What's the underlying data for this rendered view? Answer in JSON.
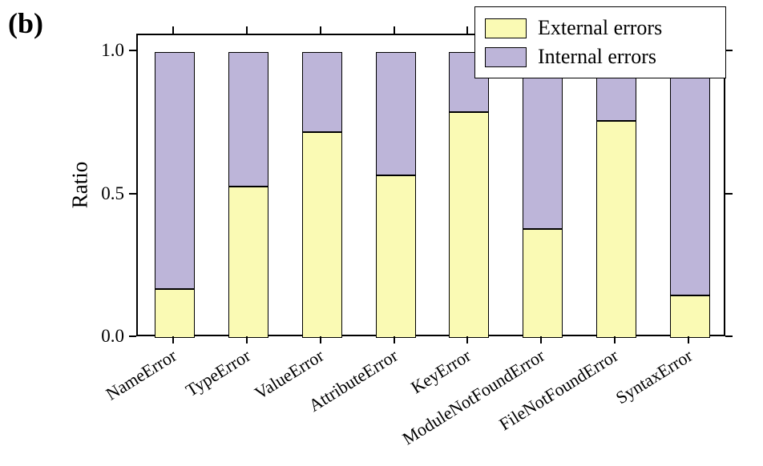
{
  "panel_label": "(b)",
  "axes": {
    "y_title": "Ratio",
    "ytick_labels": [
      "0.0",
      "0.5",
      "1.0"
    ]
  },
  "chart_data": {
    "type": "bar",
    "stacked": true,
    "title": "",
    "xlabel": "",
    "ylabel": "Ratio",
    "ylim": [
      0,
      1.06
    ],
    "yticks": [
      0.0,
      0.5,
      1.0
    ],
    "grid": false,
    "legend_position": "upper right",
    "bar_edge_color": "#000000",
    "categories": [
      "NameError",
      "TypeError",
      "ValueError",
      "AttributeError",
      "KeyError",
      "ModuleNotFoundError",
      "FileNotFoundError",
      "SyntaxError"
    ],
    "series": [
      {
        "name": "External errors",
        "color": "#FAFAB4",
        "values": [
          0.17,
          0.53,
          0.72,
          0.57,
          0.79,
          0.38,
          0.76,
          0.15
        ]
      },
      {
        "name": "Internal errors",
        "color": "#BDB5D9",
        "values": [
          0.83,
          0.47,
          0.28,
          0.43,
          0.21,
          0.62,
          0.24,
          0.85
        ]
      }
    ]
  }
}
